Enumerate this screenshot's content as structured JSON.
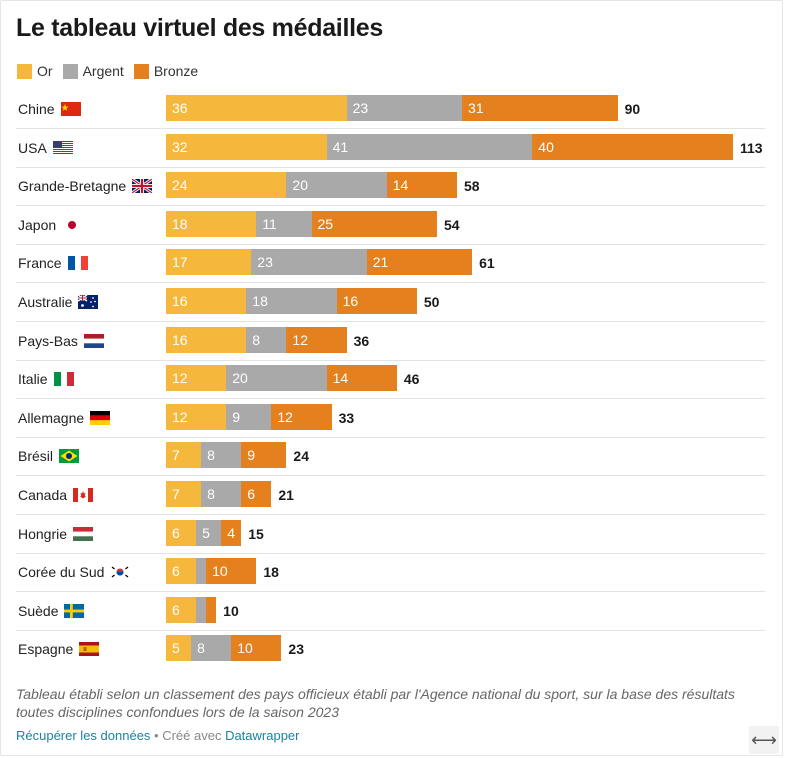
{
  "title": "Le tableau virtuel des médailles",
  "legend": [
    {
      "label": "Or",
      "color": "#f5b73c"
    },
    {
      "label": "Argent",
      "color": "#a9a9a9"
    },
    {
      "label": "Bronze",
      "color": "#e5801f"
    }
  ],
  "chart_data": {
    "type": "bar",
    "stacked": true,
    "orientation": "horizontal",
    "categories": [
      "Chine",
      "USA",
      "Grande-Bretagne",
      "Japon",
      "France",
      "Australie",
      "Pays-Bas",
      "Italie",
      "Allemagne",
      "Brésil",
      "Canada",
      "Hongrie",
      "Corée du Sud",
      "Suède",
      "Espagne"
    ],
    "flags": [
      "china-flag",
      "usa-flag",
      "uk-flag",
      "japan-flag",
      "france-flag",
      "australia-flag",
      "netherlands-flag",
      "italy-flag",
      "germany-flag",
      "brazil-flag",
      "canada-flag",
      "hungary-flag",
      "south-korea-flag",
      "sweden-flag",
      "spain-flag"
    ],
    "series": [
      {
        "name": "Or",
        "color": "#f5b73c",
        "values": [
          36,
          32,
          24,
          18,
          17,
          16,
          16,
          12,
          12,
          7,
          7,
          6,
          6,
          6,
          5
        ]
      },
      {
        "name": "Argent",
        "color": "#a9a9a9",
        "values": [
          23,
          41,
          20,
          11,
          23,
          18,
          8,
          20,
          9,
          8,
          8,
          5,
          2,
          2,
          8
        ]
      },
      {
        "name": "Bronze",
        "color": "#e5801f",
        "values": [
          31,
          40,
          14,
          25,
          21,
          16,
          12,
          14,
          12,
          9,
          6,
          4,
          10,
          2,
          10
        ]
      }
    ],
    "totals": [
      "90",
      "113",
      "58",
      "54",
      "61",
      "50",
      "36",
      "46",
      "33",
      "24",
      "21",
      "15",
      "18",
      "10",
      "23"
    ],
    "segment_labels": [
      [
        "36",
        "23",
        "31"
      ],
      [
        "32",
        "41",
        "40"
      ],
      [
        "24",
        "20",
        "14"
      ],
      [
        "18",
        "11",
        "25"
      ],
      [
        "17",
        "23",
        "21"
      ],
      [
        "16",
        "18",
        "16"
      ],
      [
        "16",
        "8",
        "12"
      ],
      [
        "12",
        "20",
        "14"
      ],
      [
        "12",
        "9",
        "12"
      ],
      [
        "7",
        "8",
        "9"
      ],
      [
        "7",
        "8",
        "6"
      ],
      [
        "6",
        "5",
        "4"
      ],
      [
        "6",
        "",
        "10"
      ],
      [
        "6",
        "",
        ""
      ],
      [
        "5",
        "8",
        "10"
      ]
    ],
    "xlim": [
      0,
      113
    ]
  },
  "note": "Tableau établi selon un classement des pays officieux établi par l'Agence national du sport, sur la base des résultats toutes disciplines confondues lors de la saison 2023",
  "footer": {
    "data_link": "Récupérer les données",
    "separator": " • Créé avec ",
    "tool_link": "Datawrapper"
  },
  "expand_glyph": "⟷"
}
